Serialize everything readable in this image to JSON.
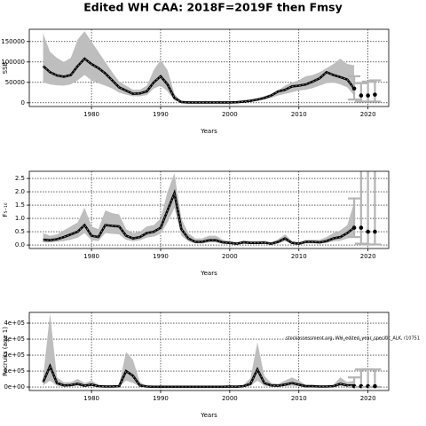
{
  "chart_data": [
    {
      "type": "line",
      "title": "Edited WH CAA: 2018F=2019F then Fmsy",
      "xlabel": "Years",
      "ylabel": "SSB",
      "x": [
        1973,
        1974,
        1975,
        1976,
        1977,
        1978,
        1979,
        1980,
        1981,
        1982,
        1983,
        1984,
        1985,
        1986,
        1987,
        1988,
        1989,
        1990,
        1991,
        1992,
        1993,
        1994,
        1995,
        1996,
        1997,
        1998,
        1999,
        2000,
        2001,
        2002,
        2003,
        2004,
        2005,
        2006,
        2007,
        2008,
        2009,
        2010,
        2011,
        2012,
        2013,
        2014,
        2015,
        2016,
        2017,
        2018
      ],
      "series": [
        {
          "color": "#000000",
          "band_color": "#bebebe",
          "values": [
            90000,
            75000,
            67000,
            64000,
            68000,
            90000,
            108000,
            95000,
            85000,
            72000,
            55000,
            38000,
            30000,
            22000,
            23000,
            28000,
            50000,
            65000,
            45000,
            12000,
            2000,
            1000,
            1000,
            1000,
            1000,
            1000,
            1000,
            1000,
            1500,
            3000,
            5000,
            8000,
            12000,
            18000,
            28000,
            32000,
            40000,
            42000,
            45000,
            52000,
            60000,
            75000,
            68000,
            63000,
            57000,
            35000
          ],
          "upper": [
            170000,
            125000,
            110000,
            100000,
            110000,
            155000,
            175000,
            150000,
            125000,
            100000,
            75000,
            52000,
            42000,
            32000,
            32000,
            42000,
            80000,
            105000,
            80000,
            22000,
            4000,
            2000,
            2000,
            2000,
            2000,
            2000,
            2000,
            2000,
            2500,
            4500,
            7000,
            11000,
            16000,
            22000,
            30000,
            42000,
            50000,
            55000,
            65000,
            68000,
            75000,
            85000,
            95000,
            108000,
            95000,
            92000
          ],
          "lower": [
            50000,
            45000,
            43000,
            42000,
            45000,
            55000,
            68000,
            55000,
            48000,
            42000,
            35000,
            25000,
            20000,
            16000,
            16000,
            19000,
            35000,
            42000,
            28000,
            6000,
            800,
            500,
            500,
            500,
            500,
            500,
            500,
            500,
            900,
            1800,
            3000,
            5000,
            8000,
            12000,
            18000,
            22000,
            26000,
            30000,
            32000,
            36000,
            42000,
            48000,
            50000,
            45000,
            38000,
            18000
          ]
        }
      ],
      "projection": {
        "x": [
          2018,
          2019,
          2020,
          2021
        ],
        "values": [
          35000,
          18000,
          18000,
          20000
        ],
        "lower": [
          8000,
          3000,
          3000,
          3000
        ],
        "upper": [
          65000,
          48000,
          52000,
          55000
        ],
        "color": "#000000",
        "bar_color": "#b4b4b4"
      },
      "xlim": [
        1971,
        2023
      ],
      "ylim": [
        -9000,
        180000
      ],
      "xticks": [
        1980,
        1990,
        2000,
        2010,
        2020
      ],
      "yticks": [
        0,
        50000,
        100000,
        150000
      ],
      "grid": true
    },
    {
      "type": "line",
      "xlabel": "Years",
      "ylabel": "F₅₋₁₀",
      "x": [
        1973,
        1974,
        1975,
        1976,
        1977,
        1978,
        1979,
        1980,
        1981,
        1982,
        1983,
        1984,
        1985,
        1986,
        1987,
        1988,
        1989,
        1990,
        1991,
        1992,
        1993,
        1994,
        1995,
        1996,
        1997,
        1998,
        1999,
        2000,
        2001,
        2002,
        2003,
        2004,
        2005,
        2006,
        2007,
        2008,
        2009,
        2010,
        2011,
        2012,
        2013,
        2014,
        2015,
        2016,
        2017,
        2018
      ],
      "series": [
        {
          "color": "#000000",
          "band_color": "#bebebe",
          "values": [
            0.2,
            0.18,
            0.22,
            0.3,
            0.4,
            0.5,
            0.75,
            0.35,
            0.3,
            0.75,
            0.72,
            0.7,
            0.35,
            0.25,
            0.3,
            0.45,
            0.5,
            0.65,
            1.3,
            1.95,
            0.6,
            0.25,
            0.12,
            0.12,
            0.18,
            0.18,
            0.1,
            0.08,
            0.05,
            0.1,
            0.08,
            0.08,
            0.09,
            0.05,
            0.12,
            0.25,
            0.08,
            0.05,
            0.12,
            0.12,
            0.1,
            0.15,
            0.25,
            0.3,
            0.45,
            0.65
          ],
          "upper": [
            0.45,
            0.35,
            0.4,
            0.55,
            0.7,
            0.85,
            1.4,
            0.7,
            0.6,
            1.3,
            1.2,
            1.15,
            0.6,
            0.45,
            0.5,
            0.7,
            0.75,
            1.0,
            2.0,
            2.7,
            1.0,
            0.45,
            0.25,
            0.25,
            0.35,
            0.35,
            0.2,
            0.15,
            0.1,
            0.18,
            0.15,
            0.15,
            0.16,
            0.1,
            0.22,
            0.4,
            0.15,
            0.1,
            0.2,
            0.2,
            0.2,
            0.3,
            0.45,
            0.55,
            0.75,
            1.6
          ],
          "lower": [
            0.1,
            0.1,
            0.12,
            0.15,
            0.2,
            0.28,
            0.45,
            0.18,
            0.15,
            0.45,
            0.42,
            0.4,
            0.2,
            0.14,
            0.18,
            0.28,
            0.32,
            0.42,
            0.85,
            1.4,
            0.35,
            0.14,
            0.06,
            0.06,
            0.1,
            0.1,
            0.05,
            0.04,
            0.02,
            0.05,
            0.04,
            0.04,
            0.05,
            0.02,
            0.06,
            0.15,
            0.04,
            0.02,
            0.06,
            0.06,
            0.05,
            0.08,
            0.14,
            0.16,
            0.25,
            0.3
          ]
        }
      ],
      "projection": {
        "x": [
          2018,
          2019,
          2020,
          2021
        ],
        "values": [
          0.65,
          0.65,
          0.5,
          0.5
        ],
        "lower": [
          0.3,
          0.05,
          0.02,
          0.02
        ],
        "upper": [
          1.75,
          3.0,
          3.0,
          3.0
        ],
        "color": "#000000",
        "bar_color": "#b4b4b4"
      },
      "xlim": [
        1971,
        2023
      ],
      "ylim": [
        -0.13,
        2.77
      ],
      "xticks": [
        1980,
        1990,
        2000,
        2010,
        2020
      ],
      "yticks": [
        {
          "value": 0,
          "label": "0.0"
        },
        0.5,
        {
          "value": 1,
          "label": "1.0"
        },
        1.5,
        {
          "value": 2,
          "label": "2.0"
        },
        2.5
      ],
      "grid": true
    },
    {
      "type": "line",
      "xlabel": "Years",
      "ylabel": "Recruits (age 1)",
      "annotation": "stockassessment.org, WH_edited_year_specific_ALK, r10751",
      "x": [
        1973,
        1974,
        1975,
        1976,
        1977,
        1978,
        1979,
        1980,
        1981,
        1982,
        1983,
        1984,
        1985,
        1986,
        1987,
        1988,
        1989,
        1990,
        1991,
        1992,
        1993,
        1994,
        1995,
        1996,
        1997,
        1998,
        1999,
        2000,
        2001,
        2002,
        2003,
        2004,
        2005,
        2006,
        2007,
        2008,
        2009,
        2010,
        2011,
        2012,
        2013,
        2014,
        2015,
        2016,
        2017,
        2018
      ],
      "series": [
        {
          "color": "#000000",
          "band_color": "#bebebe",
          "values": [
            30000,
            130000,
            25000,
            10000,
            12000,
            20000,
            8000,
            15000,
            5000,
            3000,
            3000,
            5000,
            100000,
            70000,
            10000,
            3000,
            1000,
            1000,
            1000,
            1000,
            1000,
            1000,
            1000,
            1000,
            1000,
            1000,
            1000,
            3000,
            2000,
            5000,
            20000,
            110000,
            25000,
            10000,
            8000,
            15000,
            25000,
            15000,
            5000,
            5000,
            3000,
            3000,
            5000,
            20000,
            10000,
            10000
          ],
          "upper": [
            60000,
            460000,
            60000,
            30000,
            30000,
            50000,
            25000,
            40000,
            15000,
            10000,
            10000,
            15000,
            220000,
            170000,
            30000,
            8000,
            3000,
            3000,
            3000,
            3000,
            3000,
            3000,
            3000,
            3000,
            3000,
            3000,
            3000,
            8000,
            6000,
            15000,
            55000,
            280000,
            70000,
            25000,
            20000,
            40000,
            60000,
            40000,
            15000,
            15000,
            8000,
            8000,
            15000,
            60000,
            30000,
            40000
          ],
          "lower": [
            10000,
            40000,
            8000,
            3000,
            4000,
            7000,
            3000,
            5000,
            1500,
            800,
            800,
            1500,
            40000,
            25000,
            3000,
            800,
            300,
            300,
            300,
            300,
            300,
            300,
            300,
            300,
            300,
            300,
            300,
            800,
            500,
            1500,
            6000,
            40000,
            8000,
            3000,
            2500,
            5000,
            8000,
            5000,
            1500,
            1500,
            800,
            800,
            1500,
            5000,
            2500,
            1500
          ]
        }
      ],
      "projection": {
        "x": [
          2018,
          2019,
          2020,
          2021
        ],
        "values": [
          5000,
          5000,
          5000,
          5000
        ],
        "lower": [
          0,
          0,
          0,
          0
        ],
        "upper": [
          60000,
          110000,
          110000,
          110000
        ],
        "color": "#000000",
        "bar_color": "#b4b4b4"
      },
      "xlim": [
        1971,
        2023
      ],
      "ylim": [
        -22000,
        467000
      ],
      "xticks": [
        1980,
        1990,
        2000,
        2010,
        2020
      ],
      "yticks": [
        {
          "value": 0,
          "label": "0e+00"
        },
        {
          "value": 100000,
          "label": "1e+05"
        },
        {
          "value": 200000,
          "label": "2e+05"
        },
        {
          "value": 300000,
          "label": "3e+05"
        },
        {
          "value": 400000,
          "label": "4e+05"
        }
      ],
      "grid": true
    }
  ]
}
